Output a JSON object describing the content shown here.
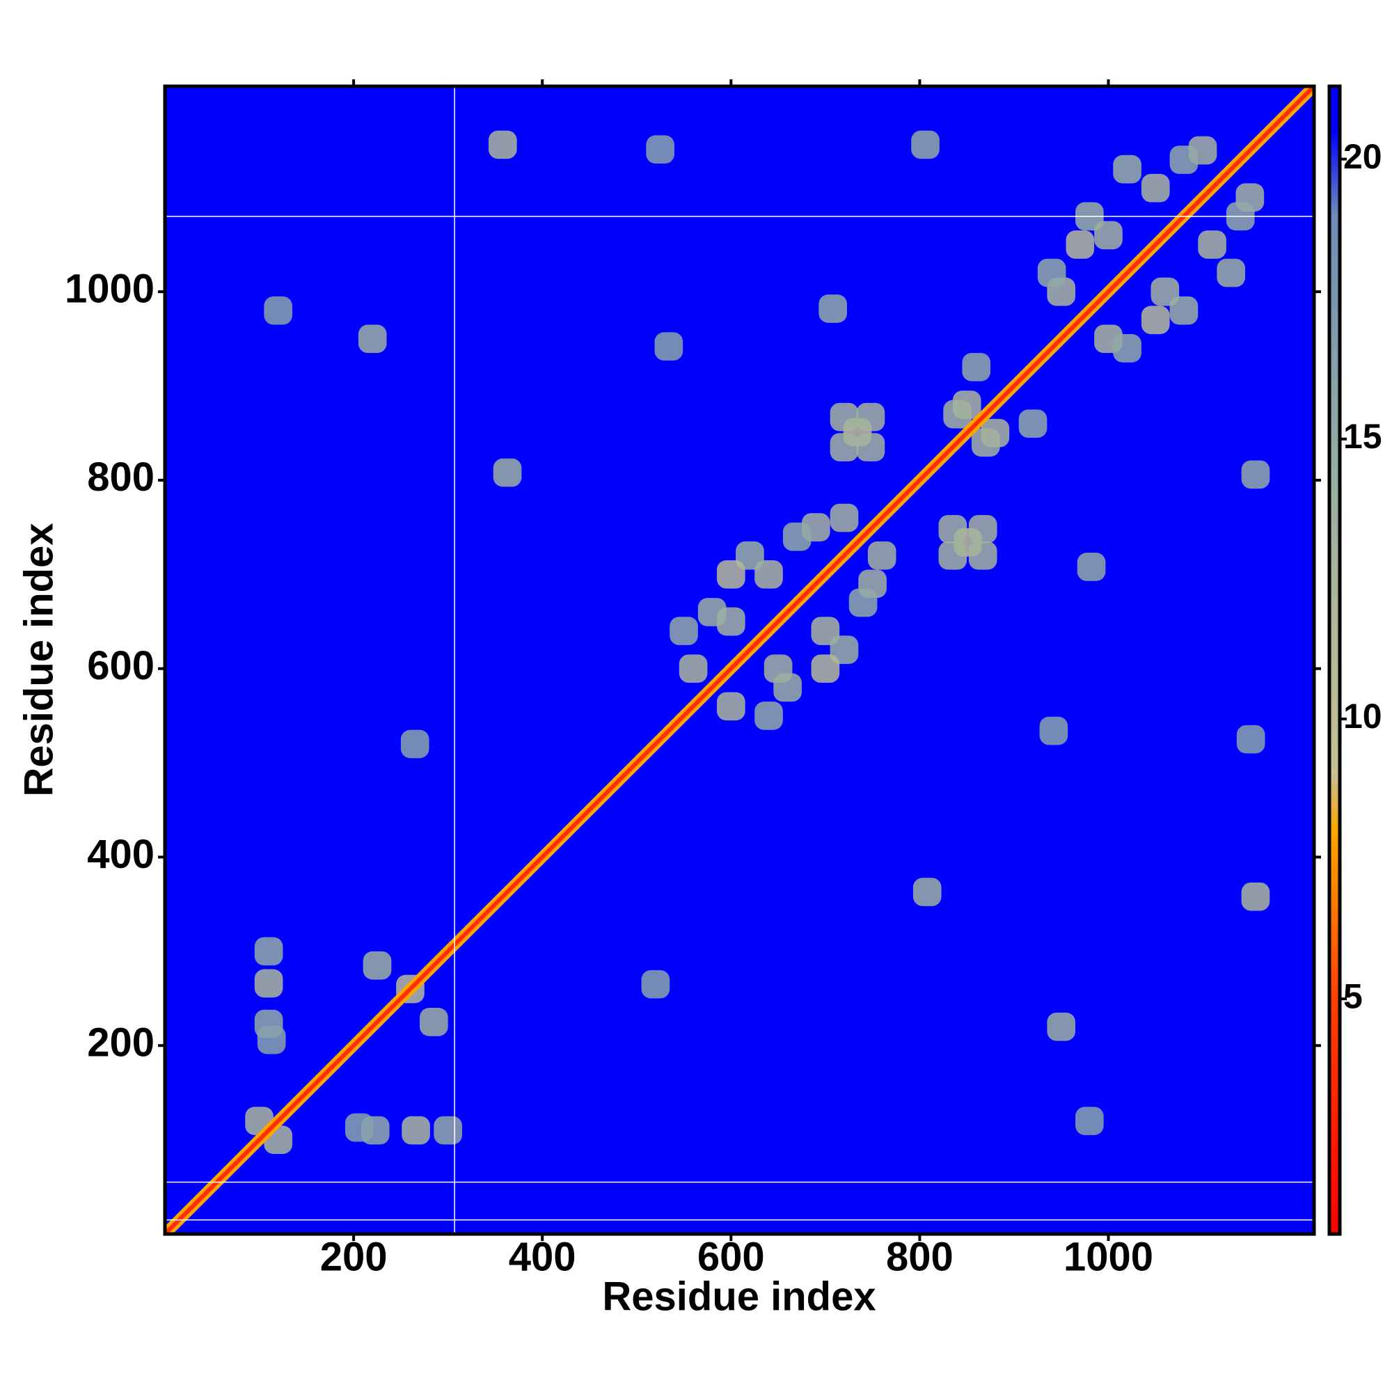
{
  "chart_data": {
    "type": "heatmap",
    "xlabel": "Residue index",
    "ylabel": "Residue index",
    "xlim": [
      0,
      1218
    ],
    "ylim": [
      0,
      1218
    ],
    "xticks": [
      200,
      400,
      600,
      800,
      1000
    ],
    "yticks": [
      200,
      400,
      600,
      800,
      1000
    ],
    "clim": [
      0.8,
      21.3
    ],
    "cticks": [
      5,
      10,
      15,
      20
    ],
    "background_value": 21.3,
    "colorscale": [
      [
        0.8,
        "#ff0000"
      ],
      [
        5,
        "#ff4000"
      ],
      [
        8,
        "#ffa500"
      ],
      [
        9,
        "#c8c090"
      ],
      [
        14,
        "#9ab0a0"
      ],
      [
        19,
        "#6c8cb8"
      ],
      [
        20.5,
        "#0000ff"
      ],
      [
        21.3,
        "#0000ff"
      ]
    ],
    "diagonal": {
      "x": [
        0,
        1218
      ],
      "y": [
        0,
        1218
      ],
      "value": 3.8
    },
    "x_gaps": [
      307
    ],
    "y_gaps": [
      15,
      55,
      1080
    ],
    "contacts": {
      "x": [
        560,
        600,
        600,
        650,
        640,
        700,
        690,
        750,
        580,
        660,
        620,
        720,
        550,
        640,
        670,
        740,
        600,
        700,
        720,
        760,
        950,
        1000,
        1000,
        1060,
        1050,
        1110,
        980,
        1080,
        1020,
        1130,
        940,
        1020,
        1100,
        1150,
        970,
        1050,
        1080,
        1140,
        734,
        720,
        748,
        720,
        748,
        851,
        835,
        867,
        867,
        835,
        850,
        880,
        840,
        870,
        920,
        860,
        110,
        266,
        225,
        285,
        110,
        223,
        206,
        113,
        300,
        110,
        100,
        120,
        260,
        358,
        1156,
        363,
        808,
        220,
        950,
        120,
        980,
        708,
        982,
        265,
        520,
        806,
        1156,
        534,
        942,
        525,
        1151
      ],
      "y": [
        600,
        560,
        650,
        600,
        700,
        640,
        750,
        690,
        660,
        580,
        720,
        620,
        640,
        550,
        740,
        670,
        700,
        600,
        760,
        720,
        1000,
        950,
        1060,
        1000,
        1110,
        1050,
        1080,
        980,
        1130,
        1020,
        1020,
        940,
        1150,
        1100,
        1050,
        970,
        1140,
        1080,
        851,
        835,
        867,
        867,
        835,
        734,
        720,
        748,
        720,
        748,
        880,
        850,
        870,
        840,
        860,
        920,
        266,
        110,
        285,
        225,
        223,
        110,
        113,
        206,
        110,
        300,
        120,
        100,
        260,
        1156,
        358,
        808,
        363,
        950,
        220,
        980,
        120,
        982,
        708,
        520,
        265,
        1156,
        806,
        942,
        534,
        1151,
        525
      ],
      "values": [
        12,
        12,
        13,
        13,
        12,
        12,
        13,
        13,
        14,
        14,
        14,
        14,
        15,
        15,
        15,
        15,
        11,
        11,
        13,
        13,
        12,
        12,
        13,
        13,
        12,
        12,
        14,
        14,
        14,
        14,
        15,
        15,
        13,
        13,
        11,
        11,
        15,
        15,
        10,
        13,
        13,
        13,
        13,
        10,
        13,
        13,
        13,
        13,
        12,
        12,
        13,
        13,
        15,
        15,
        12,
        12,
        14,
        14,
        15,
        15,
        16,
        16,
        15,
        15,
        12,
        12,
        11,
        12,
        12,
        14,
        14,
        14,
        14,
        16,
        16,
        15,
        15,
        16,
        16,
        15,
        15,
        16,
        16,
        16,
        16
      ]
    }
  }
}
